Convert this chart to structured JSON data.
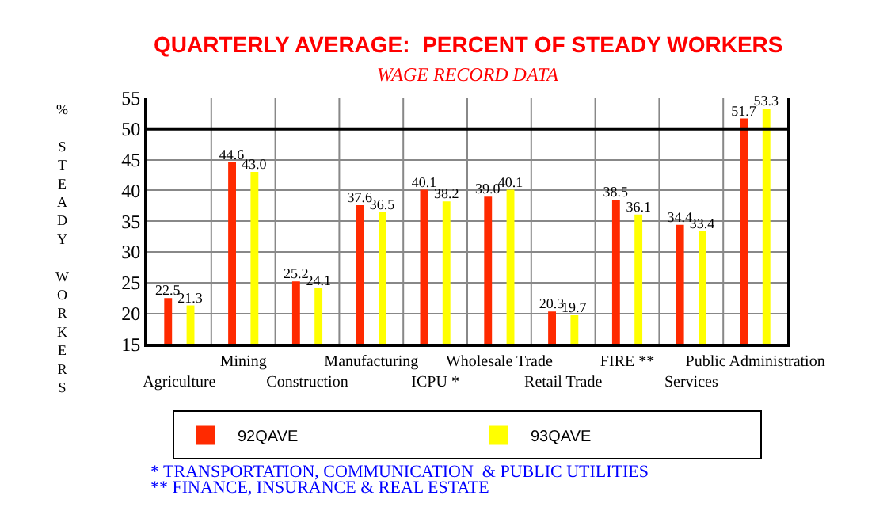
{
  "chart_data": {
    "type": "bar",
    "title": "QUARTERLY AVERAGE:  PERCENT OF STEADY WORKERS",
    "subtitle": "WAGE RECORD DATA",
    "ylabel": "% STEADY WORKERS",
    "categories": [
      "Agriculture",
      "Mining",
      "Construction",
      "Manufacturing",
      "ICPU *",
      "Wholesale Trade",
      "Retail Trade",
      "FIRE **",
      "Services",
      "Public Administration"
    ],
    "series": [
      {
        "name": "92QAVE",
        "color": "#ff2a00",
        "values": [
          22.5,
          44.6,
          25.2,
          37.6,
          40.1,
          39.0,
          20.3,
          38.5,
          34.4,
          51.7
        ],
        "value_labels": [
          "22.5",
          "44.6",
          "25.2",
          "37.6",
          "40.1",
          "39.0",
          "20.3",
          "38.5",
          "34.4",
          "51.7"
        ]
      },
      {
        "name": "93QAVE",
        "color": "#ffff00",
        "values": [
          21.3,
          43.0,
          24.1,
          36.5,
          38.2,
          40.1,
          19.7,
          36.1,
          33.4,
          53.3
        ],
        "value_labels": [
          "21.3",
          "43.0",
          "24.1",
          "36.5",
          "38.2",
          "40.1",
          "19.7",
          "36.1",
          "33.4",
          "53.3"
        ]
      }
    ],
    "ylim": [
      15,
      55
    ],
    "yticks": [
      15,
      20,
      25,
      30,
      35,
      40,
      45,
      50,
      55
    ],
    "ref_lines": [
      {
        "axis": "y",
        "value": 50,
        "color": "#000000"
      }
    ],
    "grid": true,
    "legend": "bottom",
    "annotations": [
      "* TRANSPORTATION, COMMUNICATION  & PUBLIC UTILITIES",
      "** FINANCE, INSURANCE & REAL ESTATE"
    ]
  }
}
